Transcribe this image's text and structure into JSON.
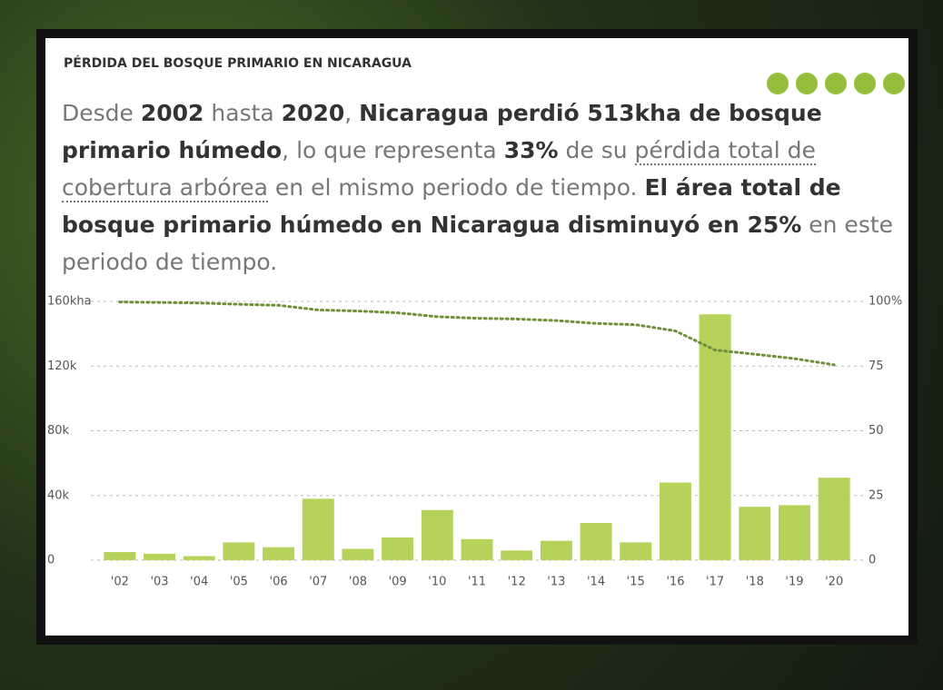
{
  "header": {
    "title": "PÉRDIDA DEL BOSQUE PRIMARIO EN NICARAGUA"
  },
  "description": {
    "segments": [
      {
        "text": "Desde ",
        "style": "plain"
      },
      {
        "text": "2002",
        "style": "bold"
      },
      {
        "text": " hasta ",
        "style": "plain"
      },
      {
        "text": "2020",
        "style": "bold"
      },
      {
        "text": ", ",
        "style": "plain"
      },
      {
        "text": "Nicaragua perdió 513kha de bosque primario húmedo",
        "style": "bold"
      },
      {
        "text": ", lo que representa ",
        "style": "plain"
      },
      {
        "text": "33%",
        "style": "bold"
      },
      {
        "text": " de su ",
        "style": "plain"
      },
      {
        "text": "pérdida total de cobertura arbórea",
        "style": "link"
      },
      {
        "text": " en el mismo periodo de tiempo. ",
        "style": "plain"
      },
      {
        "text": "El área total de bosque primario húmedo en Nicaragua disminuyó en 25%",
        "style": "bold"
      },
      {
        "text": " en este periodo de tiempo.",
        "style": "plain"
      }
    ]
  },
  "chart_data": {
    "type": "bar",
    "categories": [
      "'02",
      "'03",
      "'04",
      "'05",
      "'06",
      "'07",
      "'08",
      "'09",
      "'10",
      "'11",
      "'12",
      "'13",
      "'14",
      "'15",
      "'16",
      "'17",
      "'18",
      "'19",
      "'20"
    ],
    "series": [
      {
        "type": "bar",
        "color": "#b5d25a",
        "values": [
          5000,
          4000,
          2500,
          11000,
          8000,
          38000,
          7000,
          14000,
          31000,
          13000,
          6000,
          12000,
          23000,
          11000,
          48000,
          152000,
          33000,
          34000,
          51000
        ]
      },
      {
        "type": "line",
        "axis": "y2",
        "color": "#6f8f3a",
        "values": [
          99.8,
          99.6,
          99.4,
          98.9,
          98.5,
          96.7,
          96.3,
          95.6,
          94.1,
          93.5,
          93.2,
          92.6,
          91.5,
          91.0,
          88.6,
          81.2,
          79.6,
          77.9,
          75.5
        ]
      }
    ],
    "ylim": [
      0,
      160000
    ],
    "yticks": [
      0,
      {
        "value": 40000,
        "label": "40k"
      },
      {
        "value": 80000,
        "label": "80k"
      },
      {
        "value": 120000,
        "label": "120k"
      },
      {
        "value": 160000,
        "label": "160kha"
      }
    ],
    "y2lim": [
      0,
      100
    ],
    "y2ticks": [
      0,
      25,
      50,
      75,
      {
        "value": 100,
        "label": "100%"
      }
    ],
    "grid": true
  }
}
